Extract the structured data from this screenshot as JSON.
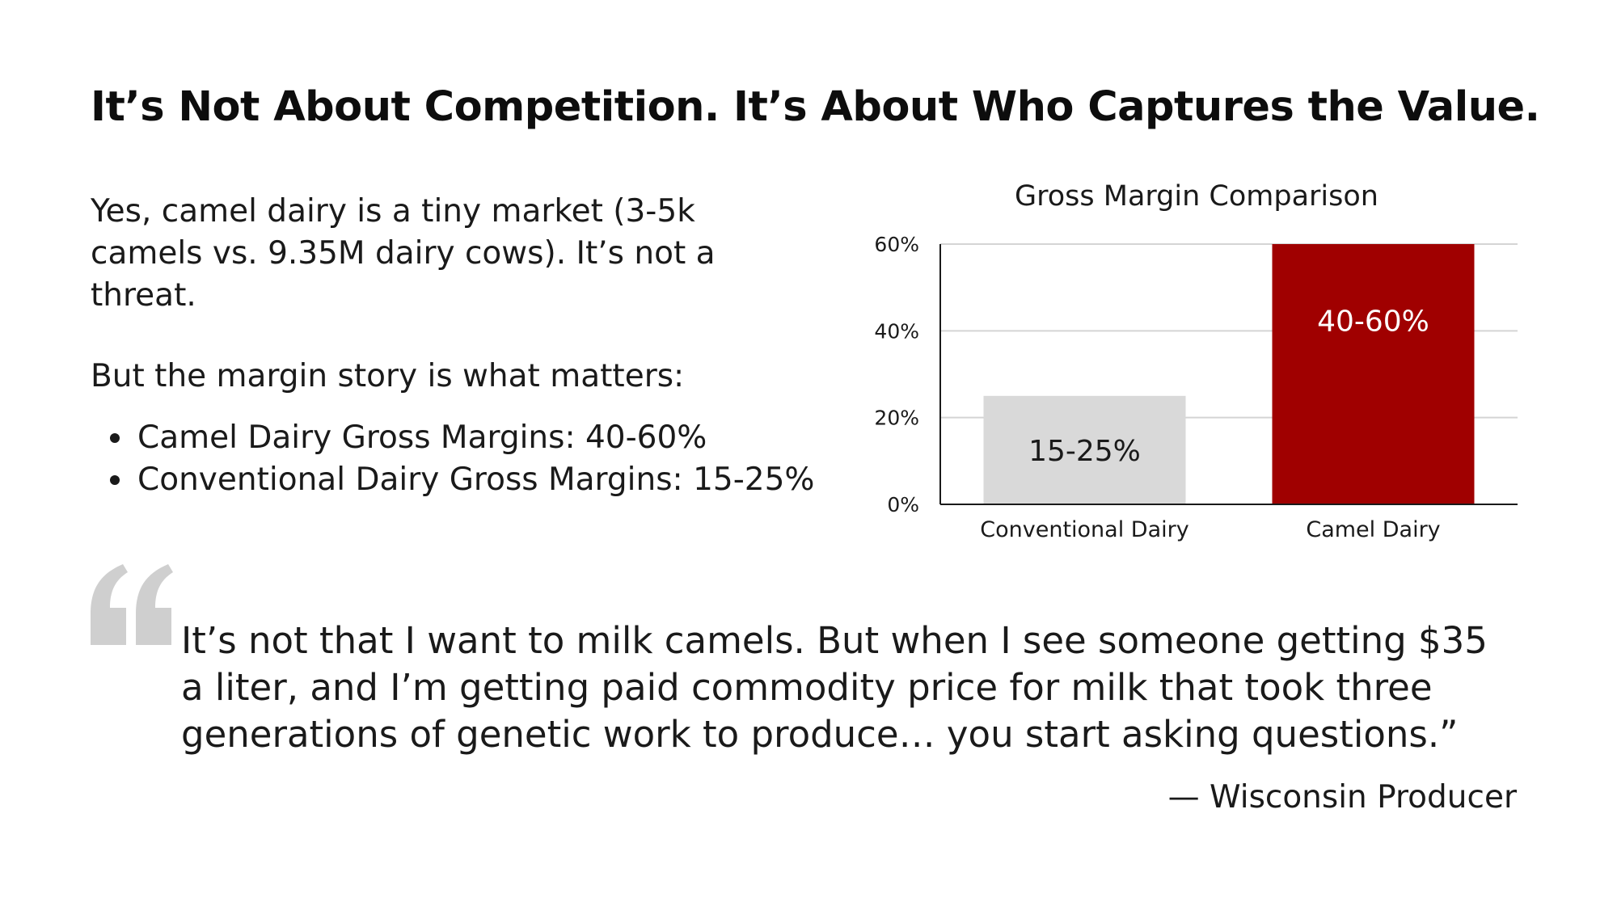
{
  "slide": {
    "title": "It’s Not About Competition. It’s About Who Captures the Value.",
    "intro": "Yes, camel dairy is a tiny market (3-5k camels vs. 9.35M dairy cows). It’s not a threat.",
    "margin_lead": "But the margin story is what matters:",
    "bullets": [
      "Camel Dairy Gross Margins: 40-60%",
      "Conventional Dairy Gross Margins: 15-25%"
    ],
    "quote_icon": "quote-mark-icon",
    "quote_lines": [
      "It’s not that I want to milk camels. But when I see someone getting $35",
      "a liter, and I’m getting paid commodity price for milk that took three",
      "generations of genetic work to produce… you start asking questions.”"
    ],
    "attribution": "— Wisconsin Producer"
  },
  "colors": {
    "conventional_bar": "#d9d9d9",
    "camel_bar": "#a00000",
    "gridline": "#d4d4d4",
    "axis": "#1a1a1a",
    "quote_mark": "#cfcfcf"
  },
  "chart_data": {
    "type": "bar",
    "title": "Gross Margin Comparison",
    "xlabel": "",
    "ylabel": "",
    "categories": [
      "Conventional Dairy",
      "Camel Dairy"
    ],
    "ranges": [
      [
        0,
        25
      ],
      [
        0,
        60
      ]
    ],
    "values": [
      25,
      60
    ],
    "data_labels": [
      "15-25%",
      "40-60%"
    ],
    "ylim": [
      0,
      60
    ],
    "yticks": [
      0,
      20,
      40,
      60
    ],
    "ytick_labels": [
      "0%",
      "20%",
      "40%",
      "60%"
    ],
    "grid": true,
    "legend": "none"
  }
}
